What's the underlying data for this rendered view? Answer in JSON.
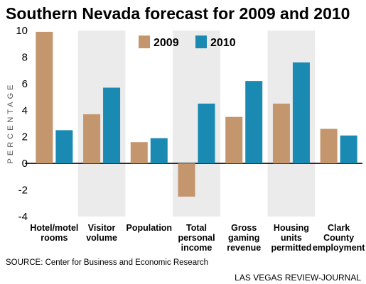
{
  "chart_data": {
    "type": "bar",
    "title": "Southern Nevada forecast for 2009 and 2010",
    "ylabel": "PERCENTAGE",
    "ylim": [
      -4,
      10
    ],
    "yticks": [
      10,
      8,
      6,
      4,
      2,
      0,
      -2,
      -4
    ],
    "categories": [
      [
        "Hotel/motel",
        "rooms"
      ],
      [
        "Visitor",
        "volume"
      ],
      [
        "Population"
      ],
      [
        "Total",
        "personal",
        "income"
      ],
      [
        "Gross",
        "gaming",
        "revenue"
      ],
      [
        "Housing",
        "units",
        "permitted"
      ],
      [
        "Clark",
        "County",
        "employment"
      ]
    ],
    "series": [
      {
        "name": "2009",
        "color": "#c4966e",
        "values": [
          9.9,
          3.7,
          1.6,
          -2.5,
          3.5,
          4.5,
          2.6
        ]
      },
      {
        "name": "2010",
        "color": "#1a8ab3",
        "values": [
          2.5,
          5.7,
          1.9,
          4.5,
          6.2,
          7.6,
          2.1
        ]
      }
    ],
    "legend": "top-center",
    "source": "SOURCE: Center for Business and Economic Research",
    "credit": "LAS VEGAS REVIEW-JOURNAL",
    "band_color": "#ebebeb"
  }
}
